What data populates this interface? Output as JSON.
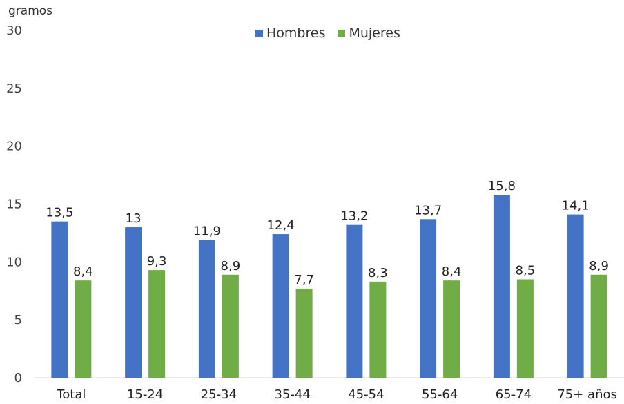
{
  "chart_data": {
    "type": "bar",
    "unit_label": "gramos",
    "categories": [
      "Total",
      "15-24",
      "25-34",
      "35-44",
      "45-54",
      "55-64",
      "65-74",
      "75+ años"
    ],
    "series": [
      {
        "name": "Hombres",
        "color": "#4472C4",
        "values": [
          13.5,
          13,
          11.9,
          12.4,
          13.2,
          13.7,
          15.8,
          14.1
        ],
        "labels": [
          "13,5",
          "13",
          "11,9",
          "12,4",
          "13,2",
          "13,7",
          "15,8",
          "14,1"
        ]
      },
      {
        "name": "Mujeres",
        "color": "#70AD47",
        "values": [
          8.4,
          9.3,
          8.9,
          7.7,
          8.3,
          8.4,
          8.5,
          8.9
        ],
        "labels": [
          "8,4",
          "9,3",
          "8,9",
          "7,7",
          "8,3",
          "8,4",
          "8,5",
          "8,9"
        ]
      }
    ],
    "yticks": [
      "0",
      "5",
      "10",
      "15",
      "20",
      "25",
      "30"
    ],
    "ylim": [
      0,
      30
    ],
    "legend_position": "top-center",
    "grid": false
  }
}
